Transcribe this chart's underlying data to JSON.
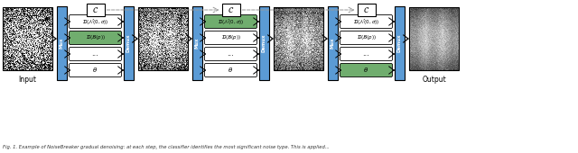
{
  "title": "Fig. 1. Example of NoiseBreaker gradual denoising: at each step, the classifier identifies the most significant noise type. This is applied…",
  "background_color": "#ffffff",
  "box_color": "#ffffff",
  "box_edge": "#000000",
  "blue_color": "#5b9bd5",
  "green_color": "#70ad6e",
  "arrow_color": "#000000",
  "dashed_color": "#999999",
  "mux_label": "Mux",
  "demux_label": "Demux",
  "c_label": "$\\mathcal{C}$",
  "dn_label": "$\\mathcal{D}(\\mathcal{N}(0,\\sigma))$",
  "db_label": "$\\mathcal{D}(\\mathcal{B}(p))$",
  "dots_label": "...",
  "theta_label": "$\\theta$",
  "input_label": "Input",
  "output_label": "Output",
  "caption": "Fig. 1. Example of NoiseBreaker gradual denoising: at each step, the classifier identifies the most significant noise type. This is applied...",
  "fig_width": 6.4,
  "fig_height": 1.7,
  "stage_db_green": [
    false,
    false,
    false
  ],
  "stage_dn_green": [
    false,
    true,
    false
  ],
  "stage_theta_green": [
    false,
    false,
    true
  ],
  "stage1_db_green": true
}
